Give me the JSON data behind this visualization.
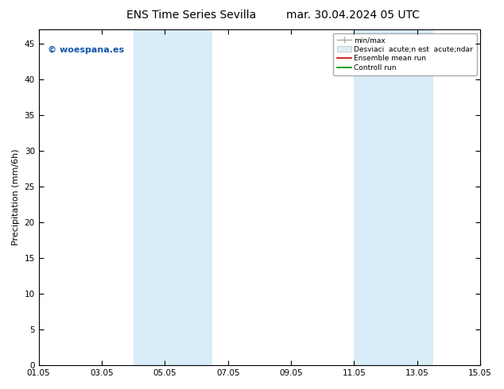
{
  "title_left": "ENS Time Series Sevilla",
  "title_right": "mar. 30.04.2024 05 UTC",
  "ylabel": "Precipitation (mm/6h)",
  "y_min": 0,
  "y_max": 47,
  "y_ticks": [
    0,
    5,
    10,
    15,
    20,
    25,
    30,
    35,
    40,
    45
  ],
  "x_min": 0,
  "x_max": 14,
  "x_tick_labels": [
    "01.05",
    "03.05",
    "05.05",
    "07.05",
    "09.05",
    "11.05",
    "13.05",
    "15.05"
  ],
  "x_tick_positions": [
    0,
    2,
    4,
    6,
    8,
    10,
    12,
    14
  ],
  "shaded_regions": [
    {
      "x_start": 3.0,
      "x_end": 5.5,
      "color": "#d8edf8"
    },
    {
      "x_start": 10.0,
      "x_end": 12.5,
      "color": "#d8edf8"
    }
  ],
  "legend_label_minmax": "min/max",
  "legend_label_std": "Desviaci  acute;n est  acute;ndar",
  "legend_label_mean": "Ensemble mean run",
  "legend_label_ctrl": "Controll run",
  "legend_color_minmax": "#aaaaaa",
  "legend_color_std": "#cccccc",
  "legend_color_mean": "#cc0000",
  "legend_color_ctrl": "#008800",
  "watermark_text": "© woespana.es",
  "watermark_color": "#1155aa",
  "background_color": "#ffffff",
  "plot_bg_color": "#ffffff"
}
